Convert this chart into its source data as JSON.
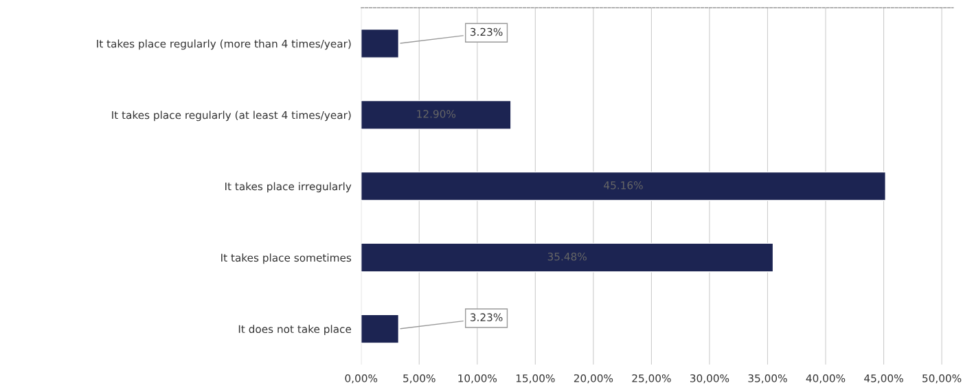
{
  "chart_data": {
    "type": "bar",
    "orientation": "horizontal",
    "categories": [
      "It takes place regularly (more than 4 times/year)",
      "It takes place regularly (at least 4 times/year)",
      "It takes place irregularly",
      "It takes place sometimes",
      "It does not take place"
    ],
    "values": [
      3.23,
      12.9,
      45.16,
      35.48,
      3.23
    ],
    "value_labels": [
      "3.23%",
      "12.90%",
      "45.16%",
      "35.48%",
      "3.23%"
    ],
    "color": "#1c2452",
    "xlim": [
      0,
      51
    ],
    "xticks": [
      {
        "value": 0,
        "label": "0,00%"
      },
      {
        "value": 5,
        "label": "5,00%"
      },
      {
        "value": 10,
        "label": "10,00%"
      },
      {
        "value": 15,
        "label": "15,00%"
      },
      {
        "value": 20,
        "label": "20,00%"
      },
      {
        "value": 25,
        "label": "25,00%"
      },
      {
        "value": 30,
        "label": "30,00%"
      },
      {
        "value": 35,
        "label": "35,00%"
      },
      {
        "value": 40,
        "label": "40,00%"
      },
      {
        "value": 45,
        "label": "45,00%"
      },
      {
        "value": 50,
        "label": "50,00%"
      }
    ],
    "grid": "x"
  }
}
